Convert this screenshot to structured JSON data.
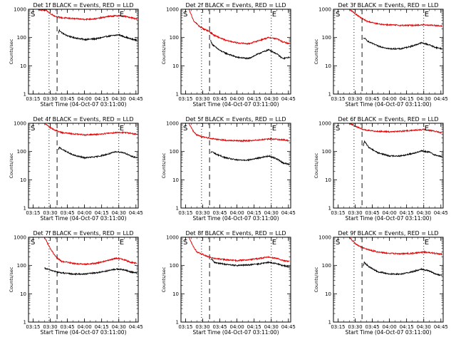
{
  "figure": {
    "background": "#ffffff"
  },
  "styles": {
    "events_color": "#000000",
    "lld_color": "#e00000",
    "axis_color": "#000000"
  },
  "chart_data": [
    {
      "type": "line",
      "title": "Det 1f BLACK = Events, RED = LLD",
      "xlabel": "Start Time (04-Oct-07 03:11:00)",
      "ylabel": "Counts/sec",
      "x_ticks": [
        "03:15",
        "03:30",
        "03:45",
        "04:00",
        "04:15",
        "04:30",
        "04:45"
      ],
      "y_ticks": [
        "1",
        "10",
        "100",
        "1000"
      ],
      "y_scale": "log",
      "ylim": [
        1,
        1000
      ],
      "markers": {
        "start": "S",
        "end": "E"
      },
      "series": [
        {
          "name": "Events",
          "color": "#000000",
          "x": [
            "03:37",
            "03:38",
            "03:40",
            "03:44",
            "03:50",
            "04:00",
            "04:10",
            "04:20",
            "04:30",
            "04:40",
            "04:46"
          ],
          "y": [
            140,
            180,
            150,
            120,
            100,
            85,
            90,
            110,
            125,
            90,
            80
          ]
        },
        {
          "name": "LLD",
          "color": "#e00000",
          "x": [
            "03:19",
            "03:27",
            "03:30",
            "03:35",
            "03:40",
            "03:50",
            "04:00",
            "04:10",
            "04:20",
            "04:30",
            "04:40",
            "04:46"
          ],
          "y": [
            1000,
            900,
            700,
            550,
            500,
            470,
            440,
            460,
            550,
            600,
            520,
            450
          ]
        }
      ]
    },
    {
      "type": "line",
      "title": "Det 2f BLACK = Events, RED = LLD",
      "xlabel": "Start Time (04-Oct-07 03:11:00)",
      "ylabel": "Counts/sec",
      "x_ticks": [
        "03:15",
        "03:30",
        "03:45",
        "04:00",
        "04:15",
        "04:30",
        "04:45"
      ],
      "y_ticks": [
        "1",
        "10",
        "100",
        "1000"
      ],
      "y_scale": "log",
      "ylim": [
        1,
        1000
      ],
      "markers": {
        "start": "S",
        "end": "E"
      },
      "series": [
        {
          "name": "Events",
          "color": "#000000",
          "x": [
            "03:37",
            "03:38",
            "03:40",
            "03:45",
            "03:50",
            "04:00",
            "04:10",
            "04:20",
            "04:28",
            "04:35",
            "04:40",
            "04:46"
          ],
          "y": [
            80,
            60,
            50,
            35,
            28,
            20,
            18,
            28,
            37,
            26,
            18,
            20
          ]
        },
        {
          "name": "LLD",
          "color": "#e00000",
          "x": [
            "03:18",
            "03:22",
            "03:27",
            "03:30",
            "03:35",
            "03:40",
            "03:50",
            "04:00",
            "04:10",
            "04:20",
            "04:28",
            "04:35",
            "04:40",
            "04:46"
          ],
          "y": [
            1000,
            400,
            250,
            210,
            170,
            120,
            80,
            65,
            60,
            80,
            100,
            90,
            70,
            60
          ]
        }
      ]
    },
    {
      "type": "line",
      "title": "Det 3f BLACK = Events, RED = LLD",
      "xlabel": "Start Time (04-Oct-07 03:11:00)",
      "ylabel": "Counts/sec",
      "x_ticks": [
        "03:15",
        "03:30",
        "03:45",
        "04:00",
        "04:15",
        "04:30",
        "04:45"
      ],
      "y_ticks": [
        "1",
        "10",
        "100",
        "1000"
      ],
      "y_scale": "log",
      "ylim": [
        1,
        1000
      ],
      "markers": {
        "start": "S",
        "end": "E"
      },
      "series": [
        {
          "name": "Events",
          "color": "#000000",
          "x": [
            "03:37",
            "03:38",
            "03:42",
            "03:50",
            "04:00",
            "04:10",
            "04:20",
            "04:28",
            "04:35",
            "04:40",
            "04:46"
          ],
          "y": [
            90,
            95,
            70,
            50,
            40,
            40,
            50,
            65,
            55,
            45,
            40
          ]
        },
        {
          "name": "LLD",
          "color": "#e00000",
          "x": [
            "03:25",
            "03:30",
            "03:35",
            "03:40",
            "03:50",
            "04:00",
            "04:10",
            "04:20",
            "04:30",
            "04:40",
            "04:46"
          ],
          "y": [
            1000,
            700,
            500,
            380,
            300,
            280,
            270,
            270,
            280,
            270,
            250
          ]
        }
      ]
    },
    {
      "type": "line",
      "title": "Det 4f BLACK = Events, RED = LLD",
      "xlabel": "Start Time (04-Oct-07 03:11:00)",
      "ylabel": "Counts/sec",
      "x_ticks": [
        "03:15",
        "03:30",
        "03:45",
        "04:00",
        "04:15",
        "04:30",
        "04:45"
      ],
      "y_ticks": [
        "1",
        "10",
        "100",
        "1000"
      ],
      "y_scale": "log",
      "ylim": [
        1,
        1000
      ],
      "markers": {
        "start": "S",
        "end": "E"
      },
      "series": [
        {
          "name": "Events",
          "color": "#000000",
          "x": [
            "03:37",
            "03:38",
            "03:42",
            "03:50",
            "04:00",
            "04:10",
            "04:20",
            "04:28",
            "04:35",
            "04:40",
            "04:46"
          ],
          "y": [
            110,
            140,
            110,
            75,
            60,
            65,
            80,
            100,
            90,
            70,
            60
          ]
        },
        {
          "name": "LLD",
          "color": "#e00000",
          "x": [
            "03:25",
            "03:30",
            "03:35",
            "03:40",
            "03:50",
            "04:00",
            "04:10",
            "04:20",
            "04:30",
            "04:40",
            "04:46"
          ],
          "y": [
            1000,
            700,
            550,
            470,
            420,
            390,
            400,
            440,
            480,
            450,
            400
          ]
        }
      ]
    },
    {
      "type": "line",
      "title": "Det 5f BLACK = Events, RED = LLD",
      "xlabel": "Start Time (04-Oct-07 03:11:00)",
      "ylabel": "Counts/sec",
      "x_ticks": [
        "03:15",
        "03:30",
        "03:45",
        "04:00",
        "04:15",
        "04:30",
        "04:45"
      ],
      "y_ticks": [
        "1",
        "10",
        "100",
        "1000"
      ],
      "y_scale": "log",
      "ylim": [
        1,
        1000
      ],
      "markers": {
        "start": "S",
        "end": "E"
      },
      "series": [
        {
          "name": "Events",
          "color": "#000000",
          "x": [
            "03:37",
            "03:38",
            "03:42",
            "03:50",
            "04:00",
            "04:10",
            "04:20",
            "04:28",
            "04:35",
            "04:40",
            "04:46"
          ],
          "y": [
            90,
            100,
            80,
            60,
            50,
            50,
            60,
            70,
            55,
            40,
            35
          ]
        },
        {
          "name": "LLD",
          "color": "#e00000",
          "x": [
            "03:18",
            "03:22",
            "03:25",
            "03:30",
            "03:40",
            "03:50",
            "04:00",
            "04:10",
            "04:20",
            "04:30",
            "04:40",
            "04:46"
          ],
          "y": [
            1000,
            500,
            380,
            330,
            280,
            250,
            240,
            240,
            260,
            280,
            260,
            240
          ]
        }
      ]
    },
    {
      "type": "line",
      "title": "Det 6f BLACK = Events, RED = LLD",
      "xlabel": "Start Time (04-Oct-07 03:11:00)",
      "ylabel": "Counts/sec",
      "x_ticks": [
        "03:15",
        "03:30",
        "03:45",
        "04:00",
        "04:15",
        "04:30",
        "04:45"
      ],
      "y_ticks": [
        "1",
        "10",
        "100",
        "1000"
      ],
      "y_scale": "log",
      "ylim": [
        1,
        1000
      ],
      "markers": {
        "start": "S",
        "end": "E"
      },
      "series": [
        {
          "name": "Events",
          "color": "#000000",
          "x": [
            "03:37",
            "03:38",
            "03:42",
            "03:50",
            "04:00",
            "04:10",
            "04:20",
            "04:28",
            "04:35",
            "04:40",
            "04:46"
          ],
          "y": [
            150,
            230,
            140,
            90,
            70,
            70,
            85,
            105,
            95,
            75,
            65
          ]
        },
        {
          "name": "LLD",
          "color": "#e00000",
          "x": [
            "03:25",
            "03:30",
            "03:35",
            "03:40",
            "03:50",
            "04:00",
            "04:10",
            "04:20",
            "04:30",
            "04:40",
            "04:46"
          ],
          "y": [
            1000,
            800,
            650,
            560,
            520,
            500,
            520,
            560,
            600,
            520,
            450
          ]
        }
      ]
    },
    {
      "type": "line",
      "title": "Det 7f BLACK = Events, RED = LLD",
      "xlabel": "Start Time (04-Oct-07 03:11:00)",
      "ylabel": "Counts/sec",
      "x_ticks": [
        "03:15",
        "03:30",
        "03:45",
        "04:00",
        "04:15",
        "04:30",
        "04:45"
      ],
      "y_ticks": [
        "1",
        "10",
        "100",
        "1000"
      ],
      "y_scale": "log",
      "ylim": [
        1,
        1000
      ],
      "markers": {
        "start": "S",
        "end": "E"
      },
      "series": [
        {
          "name": "Events",
          "color": "#000000",
          "x": [
            "03:25",
            "03:30",
            "03:35",
            "03:40",
            "03:50",
            "04:00",
            "04:10",
            "04:20",
            "04:28",
            "04:35",
            "04:40",
            "04:46"
          ],
          "y": [
            80,
            70,
            60,
            55,
            50,
            50,
            55,
            65,
            75,
            70,
            60,
            55
          ]
        },
        {
          "name": "LLD",
          "color": "#e00000",
          "x": [
            "03:25",
            "03:30",
            "03:35",
            "03:40",
            "03:50",
            "04:00",
            "04:10",
            "04:20",
            "04:28",
            "04:35",
            "04:40",
            "04:46"
          ],
          "y": [
            1000,
            400,
            200,
            140,
            120,
            110,
            120,
            150,
            180,
            160,
            130,
            120
          ]
        }
      ]
    },
    {
      "type": "line",
      "title": "Det 8f BLACK = Events, RED = LLD",
      "xlabel": "Start Time (04-Oct-07 03:11:00)",
      "ylabel": "Counts/sec",
      "x_ticks": [
        "03:15",
        "03:30",
        "03:45",
        "04:00",
        "04:15",
        "04:30",
        "04:45"
      ],
      "y_ticks": [
        "1",
        "10",
        "100",
        "1000"
      ],
      "y_scale": "log",
      "ylim": [
        1,
        1000
      ],
      "markers": {
        "start": "S",
        "end": "E"
      },
      "series": [
        {
          "name": "Events",
          "color": "#000000",
          "x": [
            "03:37",
            "03:38",
            "03:40",
            "03:50",
            "04:00",
            "04:10",
            "04:20",
            "04:28",
            "04:35",
            "04:40",
            "04:46"
          ],
          "y": [
            150,
            170,
            130,
            110,
            100,
            105,
            115,
            130,
            115,
            100,
            90
          ]
        },
        {
          "name": "LLD",
          "color": "#e00000",
          "x": [
            "03:18",
            "03:22",
            "03:25",
            "03:30",
            "03:35",
            "03:40",
            "03:50",
            "04:00",
            "04:10",
            "04:20",
            "04:28",
            "04:35",
            "04:40",
            "04:46"
          ],
          "y": [
            1000,
            450,
            300,
            250,
            200,
            180,
            160,
            150,
            160,
            180,
            200,
            180,
            150,
            140
          ]
        }
      ]
    },
    {
      "type": "line",
      "title": "Det 9f BLACK = Events, RED = LLD",
      "xlabel": "Start Time (04-Oct-07 03:11:00)",
      "ylabel": "Counts/sec",
      "x_ticks": [
        "03:15",
        "03:30",
        "03:45",
        "04:00",
        "04:15",
        "04:30",
        "04:45"
      ],
      "y_ticks": [
        "1",
        "10",
        "100",
        "1000"
      ],
      "y_scale": "log",
      "ylim": [
        1,
        1000
      ],
      "markers": {
        "start": "S",
        "end": "E"
      },
      "series": [
        {
          "name": "Events",
          "color": "#000000",
          "x": [
            "03:37",
            "03:38",
            "03:42",
            "03:50",
            "04:00",
            "04:10",
            "04:20",
            "04:28",
            "04:35",
            "04:40",
            "04:46"
          ],
          "y": [
            100,
            130,
            90,
            60,
            50,
            50,
            60,
            75,
            65,
            50,
            45
          ]
        },
        {
          "name": "LLD",
          "color": "#e00000",
          "x": [
            "03:25",
            "03:30",
            "03:35",
            "03:40",
            "03:50",
            "04:00",
            "04:10",
            "04:20",
            "04:30",
            "04:40",
            "04:46"
          ],
          "y": [
            1000,
            600,
            450,
            380,
            300,
            270,
            260,
            270,
            300,
            270,
            250
          ]
        }
      ]
    }
  ]
}
